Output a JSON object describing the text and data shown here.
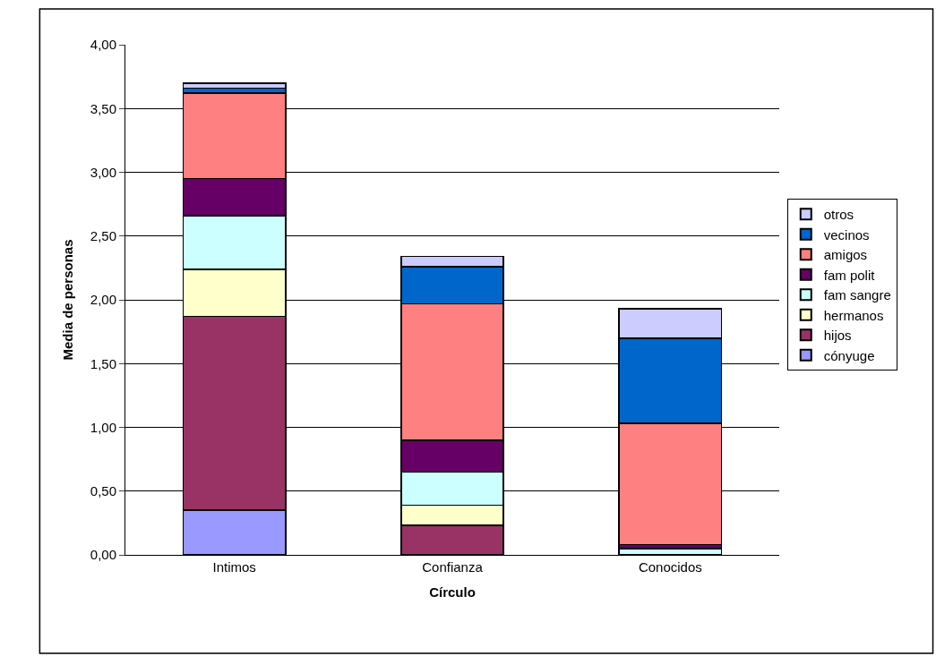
{
  "chart_data": {
    "type": "bar",
    "stacked": true,
    "xlabel": "Círculo",
    "ylabel": "Media de personas",
    "categories": [
      "Intimos",
      "Confianza",
      "Conocidos"
    ],
    "series": [
      {
        "name": "cónyuge",
        "color": "#9999ff",
        "values": [
          0.35,
          null,
          0
        ]
      },
      {
        "name": "hijos",
        "color": "#993366",
        "values": [
          1.52,
          0.23,
          0
        ]
      },
      {
        "name": "hermanos",
        "color": "#ffffcc",
        "values": [
          0.37,
          0.16,
          0
        ]
      },
      {
        "name": "fam sangre",
        "color": "#ccffff",
        "values": [
          0.42,
          0.26,
          0.05
        ]
      },
      {
        "name": "fam polit",
        "color": "#660066",
        "values": [
          0.29,
          0.25,
          0.03
        ]
      },
      {
        "name": "amigos",
        "color": "#ff8080",
        "values": [
          0.67,
          1.07,
          0.95
        ]
      },
      {
        "name": "vecinos",
        "color": "#0066cc",
        "values": [
          0.04,
          0.29,
          0.67
        ]
      },
      {
        "name": "otros",
        "color": "#ccccff",
        "values": [
          0.04,
          0.08,
          0.23
        ]
      }
    ],
    "ylim": [
      0,
      4
    ],
    "yticks": [
      {
        "value": 0,
        "label": "0,00"
      },
      {
        "value": 0.5,
        "label": "0,50"
      },
      {
        "value": 1,
        "label": "1,00"
      },
      {
        "value": 1.5,
        "label": "1,50"
      },
      {
        "value": 2,
        "label": "2,00"
      },
      {
        "value": 2.5,
        "label": "2,50"
      },
      {
        "value": 3,
        "label": "3,00"
      },
      {
        "value": 3.5,
        "label": "3,50"
      },
      {
        "value": 4,
        "label": "4,00"
      }
    ],
    "grid": "y",
    "legend": "right"
  }
}
